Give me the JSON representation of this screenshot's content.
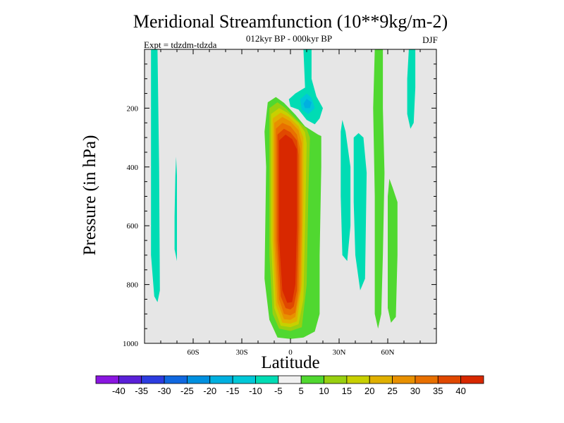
{
  "chart_data": {
    "type": "heatmap",
    "title": "Meridional Streamfunction (10**9kg/m-2)",
    "subtitle": "012kyr BP - 000kyr BP",
    "experiment": "Expt = tdzdm-tdzda",
    "season": "DJF",
    "xlabel": "Latitude",
    "ylabel": "Pressure (in hPa)",
    "xlim": [
      -90,
      90
    ],
    "ylim": [
      0,
      1000
    ],
    "y_reversed": true,
    "x_ticks": [
      {
        "value": -60,
        "label": "60S"
      },
      {
        "value": -30,
        "label": "30S"
      },
      {
        "value": 0,
        "label": "0"
      },
      {
        "value": 30,
        "label": "30N"
      },
      {
        "value": 60,
        "label": "60N"
      }
    ],
    "y_ticks": [
      {
        "value": 200,
        "label": "200"
      },
      {
        "value": 400,
        "label": "400"
      },
      {
        "value": 600,
        "label": "600"
      },
      {
        "value": 800,
        "label": "800"
      },
      {
        "value": 1000,
        "label": "1000"
      }
    ],
    "background_color": "#e6e6e6",
    "colorbar": {
      "colors": [
        "#8a16e0",
        "#5a20d8",
        "#2c3ce0",
        "#1068e0",
        "#0090e0",
        "#00b0e0",
        "#00c8d8",
        "#00dcb4",
        "#f0f0f0",
        "#50d830",
        "#98d010",
        "#c8d000",
        "#e0b000",
        "#e89000",
        "#e87000",
        "#e04800",
        "#d82800"
      ],
      "labels": [
        "-40",
        "-35",
        "-30",
        "-25",
        "-20",
        "-15",
        "-10",
        "-5",
        "5",
        "10",
        "15",
        "20",
        "25",
        "30",
        "35",
        "40"
      ]
    },
    "regions": [
      {
        "name": "sh-high-lat-left",
        "value": -7.5,
        "points": [
          [
            -86,
            0
          ],
          [
            -82,
            0
          ],
          [
            -81,
            400
          ],
          [
            -80.5,
            820
          ],
          [
            -82,
            860
          ],
          [
            -84,
            840
          ],
          [
            -86,
            700
          ],
          [
            -86,
            0
          ]
        ]
      },
      {
        "name": "sh-high-lat-narrow",
        "value": -7.5,
        "points": [
          [
            -71.5,
            570
          ],
          [
            -71,
            430
          ],
          [
            -70.5,
            365
          ],
          [
            -70,
            430
          ],
          [
            -70,
            720
          ],
          [
            -71.5,
            680
          ]
        ]
      },
      {
        "name": "upper-cyan-center",
        "value": -7.5,
        "points": [
          [
            8,
            0
          ],
          [
            13,
            0
          ],
          [
            13,
            100
          ],
          [
            16,
            160
          ],
          [
            20,
            200
          ],
          [
            18,
            235
          ],
          [
            15,
            255
          ],
          [
            10,
            240
          ],
          [
            5,
            205
          ],
          [
            0,
            195
          ],
          [
            -1,
            170
          ],
          [
            3,
            150
          ],
          [
            9,
            130
          ],
          [
            8,
            0
          ]
        ]
      },
      {
        "name": "upper-blue-core",
        "value": -12.5,
        "points": [
          [
            6,
            170
          ],
          [
            10,
            150
          ],
          [
            13,
            165
          ],
          [
            15,
            200
          ],
          [
            11,
            220
          ],
          [
            7,
            205
          ]
        ]
      },
      {
        "name": "upper-blue-inner",
        "value": -17.5,
        "points": [
          [
            8,
            185
          ],
          [
            10,
            168
          ],
          [
            13,
            180
          ],
          [
            12,
            200
          ],
          [
            9,
            200
          ]
        ]
      },
      {
        "name": "nh-cyan-band-1",
        "value": -7.5,
        "points": [
          [
            31,
            280
          ],
          [
            32,
            240
          ],
          [
            34,
            280
          ],
          [
            37,
            400
          ],
          [
            37,
            600
          ],
          [
            35,
            720
          ],
          [
            32,
            700
          ],
          [
            31,
            500
          ]
        ]
      },
      {
        "name": "nh-cyan-band-2",
        "value": -7.5,
        "points": [
          [
            39,
            300
          ],
          [
            42,
            285
          ],
          [
            45,
            300
          ],
          [
            47,
            420
          ],
          [
            46,
            780
          ],
          [
            43,
            820
          ],
          [
            40,
            700
          ],
          [
            39,
            520
          ]
        ]
      },
      {
        "name": "nh-green-band-1",
        "value": 7.5,
        "points": [
          [
            52,
            0
          ],
          [
            57,
            0
          ],
          [
            57,
            200
          ],
          [
            58,
            420
          ],
          [
            57,
            700
          ],
          [
            56,
            900
          ],
          [
            54,
            950
          ],
          [
            52,
            900
          ],
          [
            52,
            500
          ],
          [
            51,
            200
          ]
        ]
      },
      {
        "name": "nh-green-band-2",
        "value": 7.5,
        "points": [
          [
            60,
            500
          ],
          [
            61,
            440
          ],
          [
            63,
            470
          ],
          [
            66,
            520
          ],
          [
            66,
            700
          ],
          [
            65,
            910
          ],
          [
            62,
            930
          ],
          [
            60,
            880
          ]
        ]
      },
      {
        "name": "nh-high-lat-cyan",
        "value": -7.5,
        "points": [
          [
            73,
            0
          ],
          [
            77,
            0
          ],
          [
            77,
            130
          ],
          [
            76,
            250
          ],
          [
            74,
            270
          ],
          [
            72,
            220
          ],
          [
            72,
            100
          ]
        ]
      },
      {
        "name": "main-cell-5",
        "value": 7.5,
        "points": [
          [
            -14,
            180
          ],
          [
            -9,
            162
          ],
          [
            -4,
            182
          ],
          [
            3,
            222
          ],
          [
            9,
            262
          ],
          [
            17,
            290
          ],
          [
            19,
            295
          ],
          [
            19,
            400
          ],
          [
            18,
            700
          ],
          [
            18,
            900
          ],
          [
            15,
            960
          ],
          [
            8,
            980
          ],
          [
            0,
            985
          ],
          [
            -8,
            980
          ],
          [
            -13,
            920
          ],
          [
            -16,
            780
          ],
          [
            -15,
            400
          ],
          [
            -16,
            280
          ]
        ]
      },
      {
        "name": "main-cell-10",
        "value": 12.5,
        "points": [
          [
            -13,
            200
          ],
          [
            -8,
            180
          ],
          [
            -3,
            200
          ],
          [
            4,
            240
          ],
          [
            10,
            270
          ],
          [
            12,
            300
          ],
          [
            11,
            500
          ],
          [
            10,
            800
          ],
          [
            7,
            945
          ],
          [
            0,
            958
          ],
          [
            -7,
            950
          ],
          [
            -11,
            900
          ],
          [
            -13,
            700
          ],
          [
            -13,
            400
          ]
        ]
      },
      {
        "name": "main-cell-15",
        "value": 17.5,
        "points": [
          [
            -12,
            220
          ],
          [
            -7,
            200
          ],
          [
            -2,
            215
          ],
          [
            5,
            250
          ],
          [
            9,
            282
          ],
          [
            10,
            320
          ],
          [
            9,
            600
          ],
          [
            8,
            850
          ],
          [
            5,
            935
          ],
          [
            0,
            945
          ],
          [
            -6,
            940
          ],
          [
            -10,
            880
          ],
          [
            -12,
            650
          ],
          [
            -12,
            400
          ]
        ]
      },
      {
        "name": "main-cell-20",
        "value": 22.5,
        "points": [
          [
            -11,
            235
          ],
          [
            -6,
            215
          ],
          [
            -1,
            230
          ],
          [
            5,
            262
          ],
          [
            8,
            300
          ],
          [
            8,
            500
          ],
          [
            7,
            800
          ],
          [
            4,
            925
          ],
          [
            0,
            933
          ],
          [
            -5,
            930
          ],
          [
            -9,
            870
          ],
          [
            -11,
            650
          ],
          [
            -11,
            400
          ]
        ]
      },
      {
        "name": "main-cell-25",
        "value": 27.5,
        "points": [
          [
            -10,
            250
          ],
          [
            -5,
            230
          ],
          [
            0,
            245
          ],
          [
            5,
            275
          ],
          [
            7,
            320
          ],
          [
            7,
            600
          ],
          [
            6,
            820
          ],
          [
            3,
            910
          ],
          [
            0,
            920
          ],
          [
            -4,
            918
          ],
          [
            -8,
            860
          ],
          [
            -10,
            650
          ],
          [
            -10,
            400
          ]
        ]
      },
      {
        "name": "main-cell-30",
        "value": 32.5,
        "points": [
          [
            -9,
            270
          ],
          [
            -5,
            250
          ],
          [
            0,
            262
          ],
          [
            4,
            290
          ],
          [
            6,
            340
          ],
          [
            6,
            600
          ],
          [
            5,
            820
          ],
          [
            3,
            895
          ],
          [
            0,
            905
          ],
          [
            -4,
            900
          ],
          [
            -7,
            850
          ],
          [
            -9,
            650
          ],
          [
            -9,
            420
          ]
        ]
      },
      {
        "name": "main-cell-35",
        "value": 37.5,
        "points": [
          [
            -8,
            290
          ],
          [
            -4,
            270
          ],
          [
            0,
            282
          ],
          [
            4,
            310
          ],
          [
            5,
            360
          ],
          [
            5,
            600
          ],
          [
            4,
            820
          ],
          [
            2,
            875
          ],
          [
            0,
            885
          ],
          [
            -3,
            880
          ],
          [
            -6,
            840
          ],
          [
            -8,
            650
          ],
          [
            -8,
            440
          ]
        ]
      },
      {
        "name": "main-cell-40",
        "value": 42.5,
        "points": [
          [
            -7,
            310
          ],
          [
            -3,
            290
          ],
          [
            1,
            305
          ],
          [
            4,
            340
          ],
          [
            4,
            600
          ],
          [
            3,
            800
          ],
          [
            1,
            860
          ],
          [
            -2,
            862
          ],
          [
            -5,
            820
          ],
          [
            -7,
            650
          ],
          [
            -7,
            450
          ]
        ]
      }
    ]
  }
}
